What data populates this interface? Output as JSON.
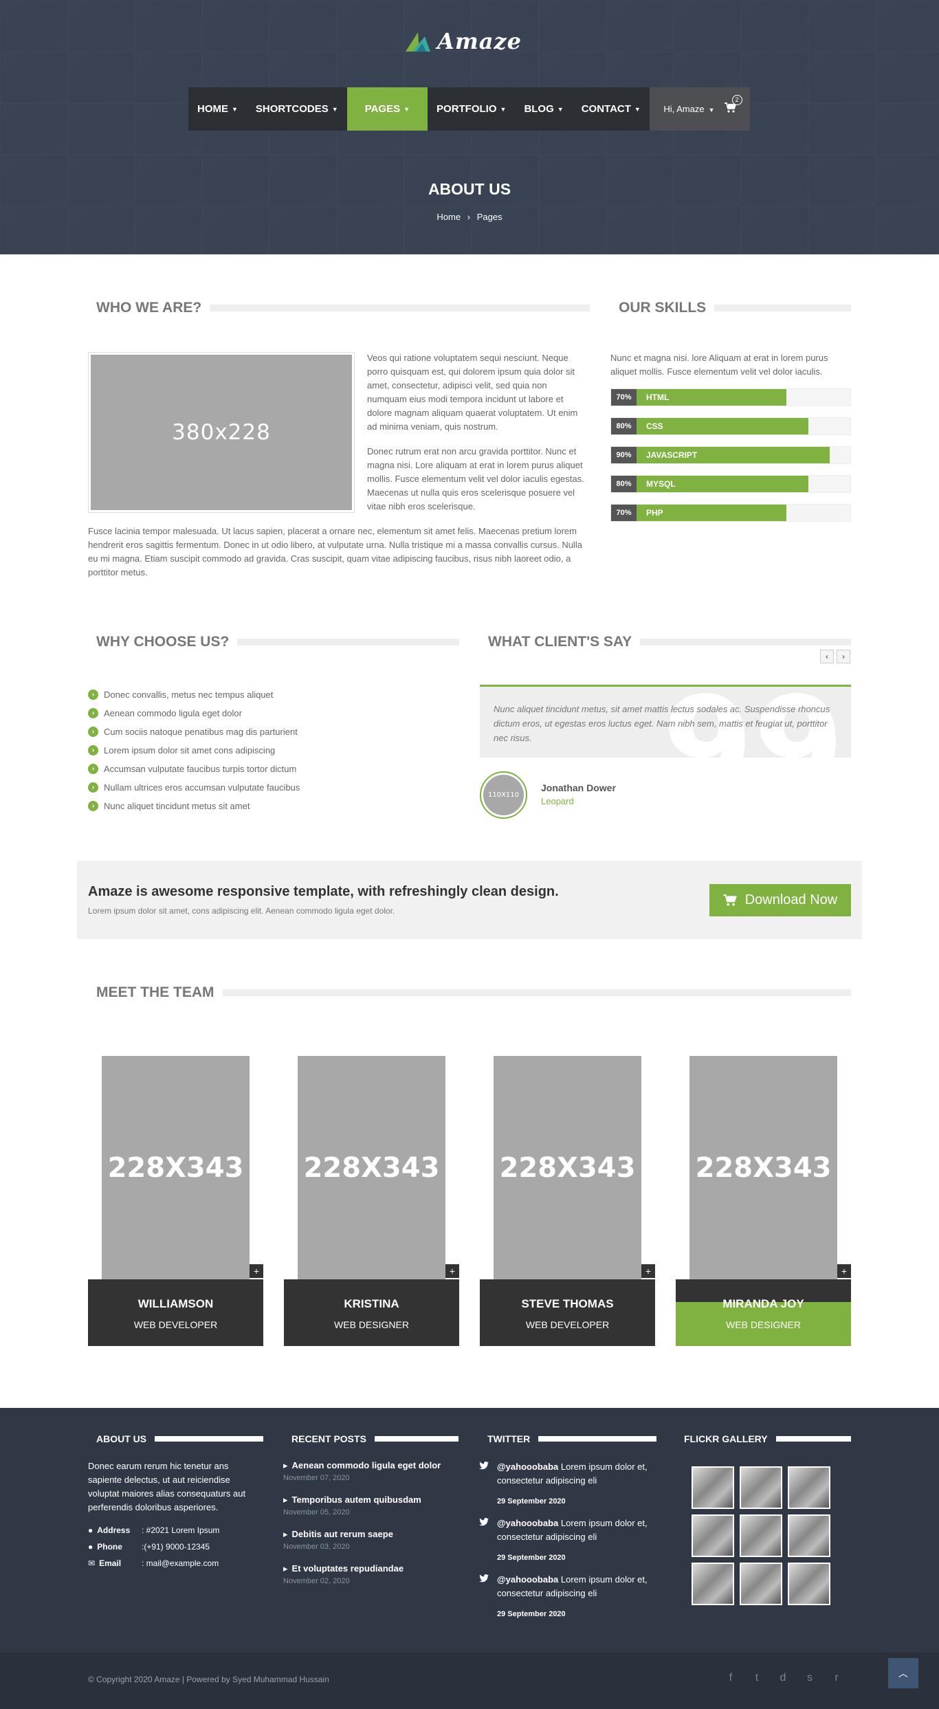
{
  "brand": {
    "name": "Amaze"
  },
  "nav": {
    "items": [
      {
        "label": "HOME"
      },
      {
        "label": "SHORTCODES"
      },
      {
        "label": "PAGES"
      },
      {
        "label": "PORTFOLIO"
      },
      {
        "label": "BLOG"
      },
      {
        "label": "CONTACT"
      }
    ],
    "user_greeting": "Hi, Amaze",
    "cart_count": "2"
  },
  "hero": {
    "title": "ABOUT US",
    "breadcrumb": [
      "Home",
      "Pages"
    ],
    "breadcrumb_sep": "›"
  },
  "who": {
    "heading": "WHO WE ARE?",
    "image_placeholder": "380x228",
    "para1": "Veos qui ratione voluptatem sequi nesciunt. Neque porro quisquam est, qui dolorem ipsum quia dolor sit amet, consectetur, adipisci velit, sed quia non numquam eius modi tempora incidunt ut labore et dolore magnam aliquam quaerat voluptatem. Ut enim ad minima veniam, quis nostrum.",
    "para2": "Donec rutrum erat non arcu gravida porttitor. Nunc et magna nisi. Lore aliquam at erat in lorem purus aliquet mollis. Fusce elementum velit vel dolor iaculis egestas. Maecenas ut nulla quis eros scelerisque posuere vel vitae nibh eros scelerisque.",
    "para3": "Fusce lacinia tempor malesuada. Ut lacus sapien, placerat a ornare nec, elementum sit amet felis. Maecenas pretium lorem hendrerit eros sagittis fermentum. Donec in ut odio libero, at vulputate urna. Nulla tristique mi a massa convallis cursus. Nulla eu mi magna. Etiam suscipit commodo ad gravida. Cras suscipit, quam vitae adipiscing faucibus, risus nibh laoreet odio, a porttitor metus."
  },
  "skills": {
    "heading": "OUR SKILLS",
    "intro": "Nunc et magna nisi. lore Aliquam at erat in lorem purus aliquet mollis. Fusce elementum velit vel dolor iaculis.",
    "items": [
      {
        "pct_label": "70%",
        "value": 0.7,
        "label": "HTML"
      },
      {
        "pct_label": "80%",
        "value": 0.8,
        "label": "CSS"
      },
      {
        "pct_label": "90%",
        "value": 0.9,
        "label": "JAVASCRIPT"
      },
      {
        "pct_label": "80%",
        "value": 0.8,
        "label": "MYSQL"
      },
      {
        "pct_label": "70%",
        "value": 0.7,
        "label": "PHP"
      }
    ]
  },
  "why": {
    "heading": "WHY CHOOSE US?",
    "items": [
      "Donec convallis, metus nec tempus aliquet",
      "Aenean commodo ligula eget dolor",
      "Cum sociis natoque penatibus mag dis parturient",
      "Lorem ipsum dolor sit amet cons adipiscing",
      "Accumsan vulputate faucibus turpis tortor dictum",
      "Nullam ultrices eros accumsan vulputate faucibus",
      "Nunc aliquet tincidunt metus sit amet"
    ]
  },
  "clients": {
    "heading": "WHAT CLIENT'S SAY",
    "quote": "Nunc aliquet tincidunt metus, sit amet mattis lectus sodales ac. Suspendisse rhoncus dictum eros, ut egestas eros luctus eget. Nam nibh sem, mattis et feugiat ut, porttitor nec risus.",
    "avatar_placeholder": "110X110",
    "name": "Jonathan Dower",
    "role": "Leopard",
    "prev": "‹",
    "next": "›"
  },
  "banner": {
    "title": "Amaze is awesome responsive template, with refreshingly clean design.",
    "subtitle": "Lorem ipsum dolor sit amet, cons adipiscing elit. Aenean commodo ligula eget dolor.",
    "button": "Download Now"
  },
  "team": {
    "heading": "MEET THE TEAM",
    "members": [
      {
        "photo": "228X343",
        "name": "WILLIAMSON",
        "role": "WEB DEVELOPER"
      },
      {
        "photo": "228X343",
        "name": "KRISTINA",
        "role": "WEB DESIGNER"
      },
      {
        "photo": "228X343",
        "name": "STEVE THOMAS",
        "role": "WEB DEVELOPER"
      },
      {
        "photo": "228X343",
        "name": "MIRANDA JOY",
        "role": "WEB DESIGNER"
      }
    ]
  },
  "footer": {
    "about": {
      "heading": "ABOUT US",
      "text": "Donec earum rerum hic tenetur ans sapiente delectus, ut aut reiciendise voluptat maiores alias consequaturs aut perferendis doloribus asperiores.",
      "address_label": "Address",
      "address": ": #2021 Lorem Ipsum",
      "phone_label": "Phone",
      "phone": ":(+91) 9000-12345",
      "email_label": "Email",
      "email": ": mail@example.com"
    },
    "posts": {
      "heading": "RECENT POSTS",
      "items": [
        {
          "title": "Aenean commodo ligula eget dolor",
          "date": "November 07, 2020"
        },
        {
          "title": "Temporibus autem quibusdam",
          "date": "November 05, 2020"
        },
        {
          "title": "Debitis aut rerum saepe",
          "date": "November 03, 2020"
        },
        {
          "title": "Et voluptates repudiandae",
          "date": "November 02, 2020"
        }
      ]
    },
    "twitter": {
      "heading": "TWITTER",
      "items": [
        {
          "handle": "@yahooobaba",
          "text": " Lorem ipsum dolor et, consectetur adipiscing eli",
          "date": "29 September 2020"
        },
        {
          "handle": "@yahooobaba",
          "text": " Lorem ipsum dolor et, consectetur adipiscing eli",
          "date": "29 September 2020"
        },
        {
          "handle": "@yahooobaba",
          "text": " Lorem ipsum dolor et, consectetur adipiscing eli",
          "date": "29 September 2020"
        }
      ]
    },
    "flickr": {
      "heading": "FLICKR GALLERY"
    },
    "copyright": "© Copyright 2020 Amaze | Powered by Syed Muhammad Hussain",
    "social": [
      "f",
      "t",
      "d",
      "s",
      "r"
    ]
  },
  "colors": {
    "accent": "#7fb240",
    "dark": "#333333",
    "footer": "#303845"
  }
}
